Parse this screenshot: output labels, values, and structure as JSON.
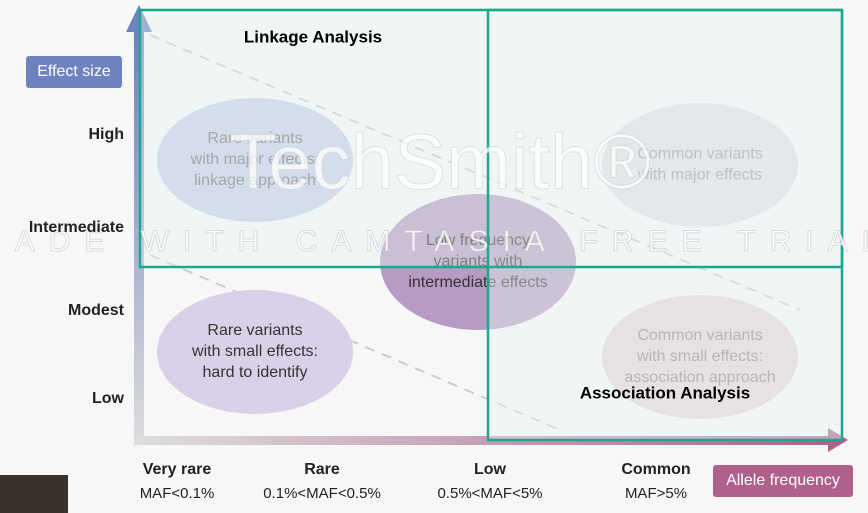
{
  "y_axis": {
    "title": "Effect size",
    "levels": [
      "High",
      "Intermediate",
      "Modest",
      "Low"
    ]
  },
  "x_axis": {
    "title": "Allele frequency",
    "categories": [
      {
        "name": "Very rare",
        "range": "MAF<0.1%"
      },
      {
        "name": "Rare",
        "range": "0.1%<MAF<0.5%"
      },
      {
        "name": "Low",
        "range": "0.5%<MAF<5%"
      },
      {
        "name": "Common",
        "range": "MAF>5%"
      }
    ]
  },
  "regions": [
    {
      "label": "Linkage Analysis"
    },
    {
      "label": "Association Analysis"
    }
  ],
  "ellipses": [
    {
      "lines": [
        "Rare variants",
        "with major effects:",
        "linkage approach"
      ]
    },
    {
      "lines": [
        "Low frequency",
        "variants with",
        "intermediate effects"
      ]
    },
    {
      "lines": [
        "Common variants",
        "with major effects"
      ]
    },
    {
      "lines": [
        "Rare variants",
        "with small effects:",
        "hard to identify"
      ]
    },
    {
      "lines": [
        "Common variants",
        "with small effects:",
        "association approach"
      ]
    }
  ],
  "watermark": {
    "brand": "TechSmith®",
    "notice": "MADE WITH CAMTASIA FREE TRIAL"
  }
}
